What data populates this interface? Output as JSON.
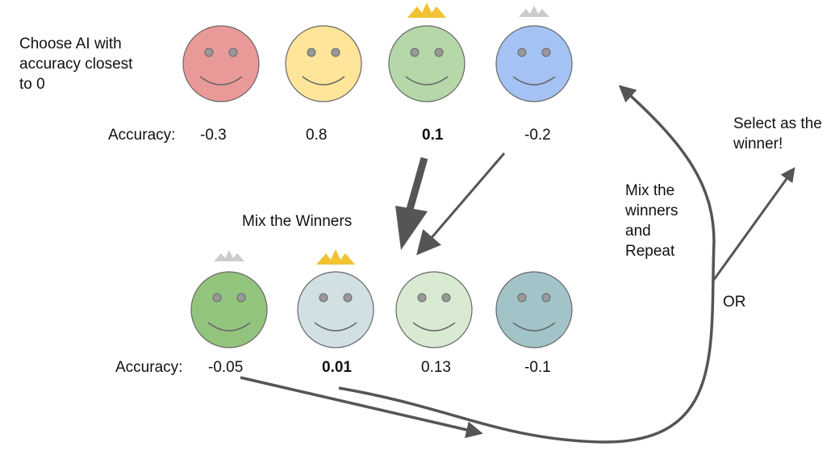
{
  "instruction": [
    "Choose AI with",
    "accuracy closest",
    "to 0"
  ],
  "accuracy_label": "Accuracy:",
  "row1": {
    "faces": [
      {
        "color": "#ea9999",
        "crown": "none",
        "accuracy": "-0.3",
        "bold": false
      },
      {
        "color": "#ffe599",
        "crown": "none",
        "accuracy": "0.8",
        "bold": false
      },
      {
        "color": "#b6d7a8",
        "crown": "gold",
        "accuracy": "0.1",
        "bold": true
      },
      {
        "color": "#a4c2f4",
        "crown": "silver",
        "accuracy": "-0.2",
        "bold": false
      }
    ]
  },
  "row2": {
    "title": "Mix the Winners",
    "faces": [
      {
        "color": "#93c47d",
        "crown": "silver",
        "accuracy": "-0.05",
        "bold": false
      },
      {
        "color": "#d0e0e3",
        "crown": "gold",
        "accuracy": "0.01",
        "bold": true
      },
      {
        "color": "#d9ead3",
        "crown": "none",
        "accuracy": "0.13",
        "bold": false
      },
      {
        "color": "#a2c4c9",
        "crown": "none",
        "accuracy": "-0.1",
        "bold": false
      }
    ]
  },
  "repeat_label": [
    "Mix the",
    "winners",
    "and",
    "Repeat"
  ],
  "or_label": "OR",
  "select_label": [
    "Select as the",
    "winner!"
  ],
  "colors": {
    "arrow": "#555555",
    "gold_crown": "#f1c232",
    "silver_crown": "#cccccc",
    "face_outline": "#666666"
  }
}
